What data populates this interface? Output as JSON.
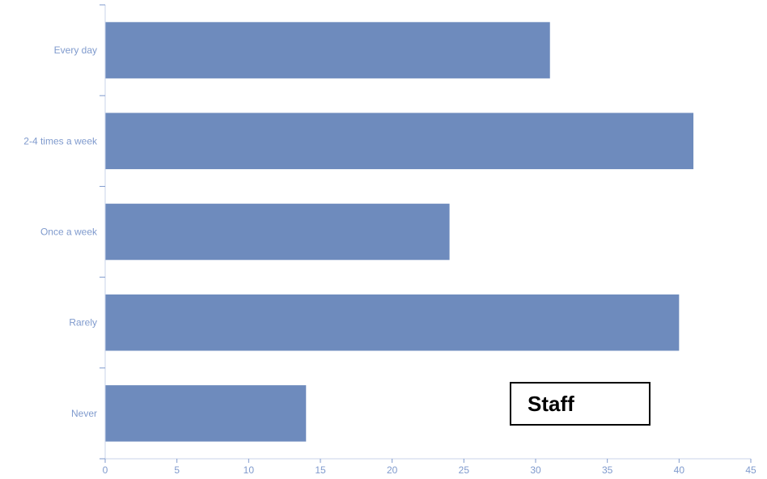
{
  "chart_data": {
    "type": "bar",
    "orientation": "horizontal",
    "categories": [
      "Every day",
      "2-4 times a week",
      "Once a week",
      "Rarely",
      "Never"
    ],
    "series": [
      {
        "name": "Staff",
        "values": [
          31,
          41,
          24,
          40,
          14
        ]
      }
    ],
    "xlim": [
      0,
      45
    ],
    "x_ticks": [
      "0",
      "5",
      "10",
      "15",
      "20",
      "25",
      "30",
      "35",
      "40",
      "45"
    ],
    "title": "",
    "xlabel": "",
    "ylabel": "",
    "grid": false,
    "legend_placement": "bottom-right",
    "colors": {
      "bar": "#6e8bbd",
      "axis": "#7f9acd",
      "text": "#7f9acd"
    }
  }
}
